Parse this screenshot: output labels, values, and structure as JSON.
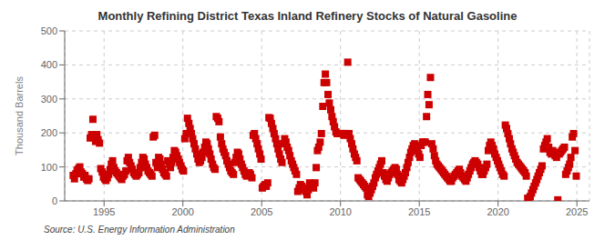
{
  "chart_data": {
    "type": "scatter",
    "title": "Monthly Refining District Texas Inland Refinery Stocks of Natural Gasoline",
    "ylabel": "Thousand Barrels",
    "annotations": [
      "Source: U.S. Energy Information Administration"
    ],
    "color": "#cc0000",
    "marker": "square",
    "grid": true,
    "xlim": [
      1992.5,
      2025.8
    ],
    "ylim": [
      0,
      500
    ],
    "xticks": [
      1995,
      2000,
      2005,
      2010,
      2015,
      2020,
      2025
    ],
    "yticks": [
      0,
      100,
      200,
      300,
      400,
      500
    ],
    "x": [
      1993.04,
      1993.12,
      1993.21,
      1993.29,
      1993.38,
      1993.46,
      1993.54,
      1993.62,
      1993.71,
      1993.79,
      1993.88,
      1993.96,
      1994.04,
      1994.12,
      1994.21,
      1994.29,
      1994.38,
      1994.46,
      1994.54,
      1994.62,
      1994.71,
      1994.79,
      1994.88,
      1994.96,
      1995.04,
      1995.12,
      1995.21,
      1995.29,
      1995.38,
      1995.46,
      1995.54,
      1995.62,
      1995.71,
      1995.79,
      1995.88,
      1995.96,
      1996.04,
      1996.12,
      1996.21,
      1996.29,
      1996.38,
      1996.46,
      1996.54,
      1996.62,
      1996.71,
      1996.79,
      1996.88,
      1996.96,
      1997.04,
      1997.12,
      1997.21,
      1997.29,
      1997.38,
      1997.46,
      1997.54,
      1997.62,
      1997.71,
      1997.79,
      1997.88,
      1997.96,
      1998.04,
      1998.12,
      1998.21,
      1998.29,
      1998.38,
      1998.46,
      1998.54,
      1998.62,
      1998.71,
      1998.79,
      1998.88,
      1998.96,
      1999.04,
      1999.12,
      1999.21,
      1999.29,
      1999.38,
      1999.46,
      1999.54,
      1999.62,
      1999.71,
      1999.79,
      1999.88,
      1999.96,
      2000.04,
      2000.12,
      2000.21,
      2000.29,
      2000.38,
      2000.46,
      2000.54,
      2000.62,
      2000.71,
      2000.79,
      2000.88,
      2000.96,
      2001.04,
      2001.12,
      2001.21,
      2001.29,
      2001.38,
      2001.46,
      2001.54,
      2001.62,
      2001.71,
      2001.79,
      2001.88,
      2001.96,
      2002.04,
      2002.12,
      2002.21,
      2002.29,
      2002.38,
      2002.46,
      2002.54,
      2002.62,
      2002.71,
      2002.79,
      2002.88,
      2002.96,
      2003.04,
      2003.12,
      2003.21,
      2003.29,
      2003.38,
      2003.46,
      2003.54,
      2003.62,
      2003.71,
      2003.79,
      2003.88,
      2003.96,
      2004.04,
      2004.12,
      2004.21,
      2004.29,
      2004.38,
      2004.46,
      2004.54,
      2004.62,
      2004.71,
      2004.79,
      2004.88,
      2004.96,
      2005.04,
      2005.12,
      2005.21,
      2005.29,
      2005.38,
      2005.46,
      2005.54,
      2005.62,
      2005.71,
      2005.79,
      2005.88,
      2005.96,
      2006.04,
      2006.12,
      2006.21,
      2006.29,
      2006.38,
      2006.46,
      2006.54,
      2006.62,
      2006.71,
      2006.79,
      2006.88,
      2006.96,
      2007.04,
      2007.12,
      2007.21,
      2007.29,
      2007.38,
      2007.46,
      2007.54,
      2007.62,
      2007.71,
      2007.79,
      2007.88,
      2007.96,
      2008.04,
      2008.12,
      2008.21,
      2008.29,
      2008.38,
      2008.46,
      2008.54,
      2008.62,
      2008.71,
      2008.79,
      2008.88,
      2008.96,
      2009.04,
      2009.12,
      2009.21,
      2009.29,
      2009.38,
      2009.46,
      2009.54,
      2009.62,
      2009.71,
      2009.79,
      2009.88,
      2009.96,
      2010.04,
      2010.12,
      2010.21,
      2010.29,
      2010.38,
      2010.46,
      2010.54,
      2010.62,
      2010.71,
      2010.79,
      2010.88,
      2010.96,
      2011.04,
      2011.12,
      2011.21,
      2011.29,
      2011.38,
      2011.46,
      2011.54,
      2011.62,
      2011.71,
      2011.79,
      2011.88,
      2011.96,
      2012.04,
      2012.12,
      2012.21,
      2012.29,
      2012.38,
      2012.46,
      2012.54,
      2012.62,
      2012.71,
      2012.79,
      2012.88,
      2012.96,
      2013.04,
      2013.12,
      2013.21,
      2013.29,
      2013.38,
      2013.46,
      2013.54,
      2013.62,
      2013.71,
      2013.79,
      2013.88,
      2013.96,
      2014.04,
      2014.12,
      2014.21,
      2014.29,
      2014.38,
      2014.46,
      2014.54,
      2014.62,
      2014.71,
      2014.79,
      2014.88,
      2014.96,
      2015.04,
      2015.12,
      2015.21,
      2015.29,
      2015.38,
      2015.46,
      2015.54,
      2015.62,
      2015.71,
      2015.79,
      2015.88,
      2015.96,
      2016.04,
      2016.12,
      2016.21,
      2016.29,
      2016.38,
      2016.46,
      2016.54,
      2016.62,
      2016.71,
      2016.79,
      2016.88,
      2016.96,
      2017.04,
      2017.12,
      2017.21,
      2017.29,
      2017.38,
      2017.46,
      2017.54,
      2017.62,
      2017.71,
      2017.79,
      2017.88,
      2017.96,
      2018.04,
      2018.12,
      2018.21,
      2018.29,
      2018.38,
      2018.46,
      2018.54,
      2018.62,
      2018.71,
      2018.79,
      2018.88,
      2018.96,
      2019.04,
      2019.12,
      2019.21,
      2019.29,
      2019.38,
      2019.46,
      2019.54,
      2019.62,
      2019.71,
      2019.79,
      2019.88,
      2019.96,
      2020.04,
      2020.12,
      2020.21,
      2020.29,
      2020.38,
      2020.46,
      2020.54,
      2020.62,
      2020.71,
      2020.79,
      2020.88,
      2020.96,
      2021.04,
      2021.12,
      2021.21,
      2021.29,
      2021.38,
      2021.46,
      2021.54,
      2021.62,
      2021.71,
      2021.79,
      2021.88,
      2021.96,
      2022.04,
      2022.12,
      2022.21,
      2022.29,
      2022.38,
      2022.46,
      2022.54,
      2022.62,
      2022.71,
      2022.79,
      2022.88,
      2022.96,
      2023.04,
      2023.12,
      2023.21,
      2023.29,
      2023.38,
      2023.46,
      2023.54,
      2023.62,
      2023.71,
      2023.79,
      2023.88,
      2023.96,
      2024.04,
      2024.12,
      2024.21,
      2024.29,
      2024.38,
      2024.46,
      2024.54,
      2024.62,
      2024.71,
      2024.79,
      2024.88,
      2024.96
    ],
    "values": [
      75,
      65,
      80,
      90,
      95,
      100,
      85,
      80,
      70,
      75,
      65,
      60,
      65,
      185,
      195,
      240,
      190,
      175,
      195,
      180,
      170,
      95,
      85,
      70,
      65,
      60,
      68,
      78,
      92,
      108,
      118,
      98,
      88,
      83,
      78,
      73,
      68,
      63,
      73,
      78,
      88,
      118,
      128,
      113,
      103,
      93,
      83,
      78,
      73,
      78,
      83,
      98,
      113,
      128,
      123,
      108,
      98,
      88,
      83,
      78,
      73,
      188,
      193,
      113,
      98,
      128,
      123,
      108,
      93,
      83,
      78,
      73,
      118,
      108,
      98,
      113,
      128,
      148,
      143,
      133,
      123,
      113,
      103,
      93,
      88,
      183,
      198,
      243,
      228,
      213,
      198,
      183,
      168,
      153,
      138,
      123,
      113,
      118,
      128,
      143,
      158,
      173,
      168,
      153,
      138,
      123,
      108,
      98,
      93,
      248,
      243,
      233,
      188,
      168,
      153,
      143,
      133,
      118,
      108,
      98,
      88,
      83,
      78,
      113,
      128,
      143,
      138,
      123,
      108,
      98,
      88,
      78,
      73,
      78,
      83,
      78,
      68,
      193,
      198,
      183,
      168,
      153,
      138,
      123,
      38,
      43,
      48,
      43,
      53,
      245,
      243,
      228,
      213,
      198,
      183,
      168,
      153,
      138,
      123,
      113,
      168,
      183,
      173,
      158,
      148,
      133,
      118,
      108,
      98,
      88,
      78,
      28,
      38,
      48,
      43,
      38,
      33,
      28,
      18,
      33,
      53,
      48,
      43,
      38,
      53,
      98,
      148,
      158,
      173,
      198,
      278,
      348,
      373,
      348,
      313,
      288,
      268,
      248,
      233,
      218,
      203,
      198,
      198,
      198,
      198,
      198,
      193,
      198,
      198,
      408,
      198,
      183,
      168,
      153,
      138,
      128,
      118,
      68,
      63,
      58,
      53,
      48,
      43,
      38,
      18,
      13,
      23,
      33,
      43,
      53,
      68,
      78,
      88,
      98,
      108,
      118,
      83,
      73,
      63,
      58,
      68,
      78,
      83,
      88,
      93,
      98,
      93,
      78,
      63,
      58,
      53,
      63,
      73,
      83,
      98,
      113,
      128,
      143,
      153,
      163,
      168,
      158,
      148,
      138,
      128,
      163,
      173,
      173,
      173,
      248,
      313,
      283,
      363,
      168,
      153,
      133,
      118,
      108,
      103,
      98,
      93,
      88,
      83,
      78,
      73,
      68,
      63,
      58,
      58,
      68,
      73,
      78,
      83,
      88,
      93,
      83,
      73,
      68,
      63,
      58,
      68,
      78,
      88,
      98,
      108,
      113,
      118,
      113,
      108,
      98,
      88,
      78,
      78,
      88,
      98,
      108,
      148,
      163,
      173,
      163,
      153,
      138,
      128,
      118,
      108,
      98,
      88,
      78,
      73,
      223,
      213,
      198,
      183,
      168,
      153,
      143,
      133,
      123,
      113,
      108,
      103,
      98,
      93,
      88,
      83,
      73,
      8,
      3,
      13,
      23,
      33,
      43,
      53,
      63,
      73,
      83,
      93,
      103,
      153,
      163,
      173,
      183,
      158,
      143,
      138,
      148,
      143,
      133,
      128,
      3,
      138,
      143,
      148,
      153,
      158,
      78,
      88,
      98,
      108,
      128,
      188,
      198,
      148,
      73
    ]
  }
}
